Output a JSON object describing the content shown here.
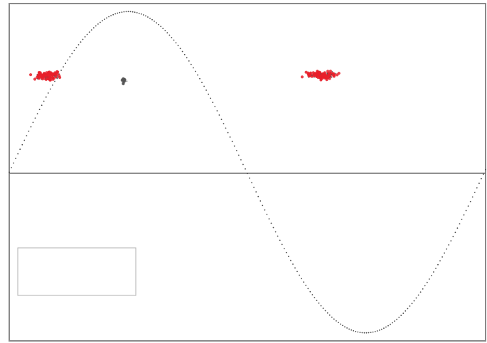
{
  "chart_data": {
    "type": "scatter",
    "title": "",
    "xlabel": "",
    "ylabel": "",
    "xlim": [
      0,
      6.3
    ],
    "ylim": [
      -1.05,
      1.05
    ],
    "grid": false,
    "legend": "bottom-left",
    "series": [
      {
        "kind": "dotted-curve",
        "function": "sine",
        "samples": 220,
        "color": "#4a4a4a"
      },
      {
        "kind": "cluster",
        "center": [
          0.52,
          0.6
        ],
        "spread": [
          0.28,
          0.04
        ],
        "count": 110,
        "color": "#e8202a",
        "accent": "#555555"
      },
      {
        "kind": "cluster",
        "center": [
          1.52,
          0.57
        ],
        "spread": [
          0.05,
          0.03
        ],
        "count": 14,
        "color": "#555555",
        "accent": "#555555"
      },
      {
        "kind": "cluster",
        "center": [
          4.15,
          0.605
        ],
        "spread": [
          0.35,
          0.035
        ],
        "count": 140,
        "color": "#e8202a",
        "accent": "#555555"
      }
    ]
  },
  "legend": {
    "entries": []
  }
}
